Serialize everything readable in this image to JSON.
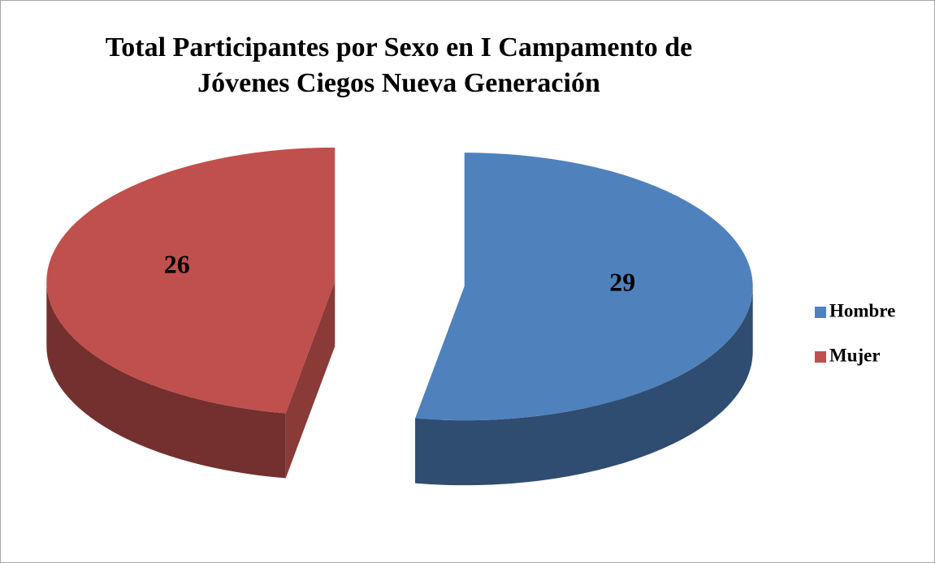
{
  "chart_data": {
    "type": "pie",
    "title": "Total Participantes  por Sexo en I Campamento  de\nJóvenes Ciegos Nueva Generación",
    "categories": [
      "Hombre",
      "Mujer"
    ],
    "values": [
      29,
      26
    ],
    "colors": [
      "#4f81bd",
      "#c0504d"
    ],
    "legend": "right"
  }
}
